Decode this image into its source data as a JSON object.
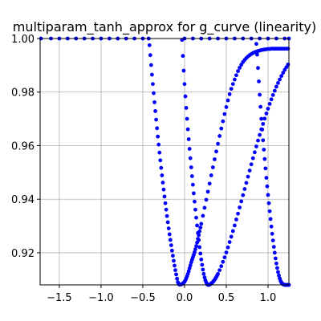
{
  "chart_data": {
    "type": "scatter",
    "title": "multiparam_tanh_approx for g_curve (linearity)",
    "xlabel": "",
    "ylabel": "",
    "xlim": [
      -1.73,
      1.25
    ],
    "ylim": [
      0.908,
      1.0
    ],
    "x_ticks": [
      -1.5,
      -1.0,
      -0.5,
      0.0,
      0.5,
      1.0
    ],
    "x_tick_labels": [
      "−1.5",
      "−1.0",
      "−0.5",
      "0.0",
      "0.5",
      "1.0"
    ],
    "y_ticks": [
      0.92,
      0.94,
      0.96,
      0.98,
      1.0
    ],
    "y_tick_labels": [
      "0.92",
      "0.94",
      "0.96",
      "0.98",
      "1.00"
    ],
    "grid": true,
    "legend": "none",
    "marker_color": "#0000ff",
    "series": [
      {
        "x": [
          -1.72,
          -1.6,
          -1.5,
          -1.4,
          -1.3,
          -1.2,
          -1.1,
          -1.0,
          -0.9,
          -0.8,
          -0.7,
          -0.6,
          -0.5,
          -0.43,
          0.0,
          0.1,
          0.2,
          0.3,
          0.4,
          0.5,
          0.6,
          0.7,
          0.8,
          0.9,
          1.0,
          1.1,
          1.2,
          1.25
        ],
        "y": [
          1.0,
          1.0,
          1.0,
          1.0,
          1.0,
          1.0,
          1.0,
          1.0,
          1.0,
          1.0,
          1.0,
          1.0,
          1.0,
          1.0,
          1.0,
          1.0,
          1.0,
          1.0,
          1.0,
          1.0,
          1.0,
          1.0,
          1.0,
          1.0,
          1.0,
          1.0,
          1.0,
          1.0
        ]
      },
      {
        "x": [
          -0.42,
          -0.41,
          -0.4,
          -0.39,
          -0.38,
          -0.37,
          -0.36,
          -0.35,
          -0.34,
          -0.33,
          -0.32,
          -0.31,
          -0.3,
          -0.29,
          -0.28,
          -0.27,
          -0.26,
          -0.25,
          -0.24,
          -0.23,
          -0.22,
          -0.21,
          -0.2,
          -0.19,
          -0.18,
          -0.17,
          -0.16,
          -0.15,
          -0.14,
          -0.13,
          -0.12,
          -0.11,
          -0.1,
          -0.09,
          -0.08,
          -0.07,
          -0.06,
          -0.05,
          -0.04,
          -0.03,
          -0.02,
          -0.01,
          0.0,
          0.01,
          0.02,
          0.03,
          0.04,
          0.05,
          0.06,
          0.07,
          0.08,
          0.09,
          0.1,
          0.11,
          0.12,
          0.13,
          0.14,
          0.15,
          0.16,
          0.17,
          0.18,
          0.19,
          0.2,
          0.22,
          0.24,
          0.26,
          0.28,
          0.3,
          0.32,
          0.34,
          0.36,
          0.38,
          0.4,
          0.42,
          0.44,
          0.46,
          0.48,
          0.5,
          0.52,
          0.54,
          0.56,
          0.58,
          0.6,
          0.62,
          0.64,
          0.66,
          0.68,
          0.7,
          0.72,
          0.74,
          0.76,
          0.78,
          0.8,
          0.82,
          0.84,
          0.86,
          0.88,
          0.9,
          0.92,
          0.94,
          0.96,
          0.98,
          1.0,
          1.02,
          1.04,
          1.06,
          1.08,
          1.1,
          1.12,
          1.14,
          1.16,
          1.18,
          1.2,
          1.22,
          1.24
        ],
        "y": [
          0.9975,
          0.9938,
          0.9901,
          0.9865,
          0.983,
          0.9796,
          0.9762,
          0.9729,
          0.9697,
          0.9665,
          0.9634,
          0.9604,
          0.9574,
          0.9545,
          0.9517,
          0.9489,
          0.9462,
          0.9436,
          0.941,
          0.9385,
          0.9361,
          0.9337,
          0.9314,
          0.9291,
          0.9269,
          0.9248,
          0.9228,
          0.9208,
          0.9189,
          0.917,
          0.9152,
          0.9135,
          0.9119,
          0.9103,
          0.909,
          0.9083,
          0.9081,
          0.9081,
          0.9082,
          0.9083,
          0.9085,
          0.9088,
          0.9092,
          0.9097,
          0.9104,
          0.9112,
          0.9121,
          0.9131,
          0.9142,
          0.9153,
          0.9164,
          0.9174,
          0.9183,
          0.9192,
          0.9202,
          0.9213,
          0.9225,
          0.9238,
          0.9252,
          0.9266,
          0.928,
          0.9294,
          0.9308,
          0.9338,
          0.9368,
          0.9398,
          0.9428,
          0.9458,
          0.9489,
          0.9519,
          0.9549,
          0.9578,
          0.9607,
          0.9636,
          0.9664,
          0.9691,
          0.9718,
          0.9744,
          0.9769,
          0.9792,
          0.9812,
          0.983,
          0.9847,
          0.9863,
          0.9878,
          0.9891,
          0.9902,
          0.9912,
          0.992,
          0.9927,
          0.9933,
          0.9938,
          0.9942,
          0.9946,
          0.9949,
          0.9951,
          0.9953,
          0.9955,
          0.9957,
          0.9958,
          0.9959,
          0.996,
          0.9961,
          0.9961,
          0.9962,
          0.9962,
          0.9962,
          0.9962,
          0.9962,
          0.9962,
          0.9962,
          0.9962,
          0.9962,
          0.9962,
          0.9962
        ]
      },
      {
        "x": [
          -0.03,
          -0.02,
          -0.01,
          0.0,
          0.01,
          0.02,
          0.03,
          0.04,
          0.05,
          0.06,
          0.07,
          0.08,
          0.09,
          0.1,
          0.11,
          0.12,
          0.13,
          0.14,
          0.15,
          0.16,
          0.17,
          0.18,
          0.19,
          0.2,
          0.21,
          0.22,
          0.23,
          0.24,
          0.25,
          0.26,
          0.27,
          0.28,
          0.29,
          0.3,
          0.31,
          0.32,
          0.33,
          0.34,
          0.35,
          0.36,
          0.37,
          0.38,
          0.39,
          0.4,
          0.42,
          0.44,
          0.46,
          0.48,
          0.5,
          0.52,
          0.54,
          0.56,
          0.58,
          0.6,
          0.62,
          0.64,
          0.66,
          0.68,
          0.7,
          0.72,
          0.74,
          0.76,
          0.78,
          0.8,
          0.82,
          0.84,
          0.86,
          0.88,
          0.9,
          0.92,
          0.94,
          0.96,
          0.98,
          1.0,
          1.02,
          1.04,
          1.06,
          1.08,
          1.1,
          1.12,
          1.14,
          1.16,
          1.18,
          1.2,
          1.22,
          1.24
        ],
        "y": [
          0.9995,
          0.9935,
          0.988,
          0.983,
          0.9784,
          0.9741,
          0.97,
          0.9661,
          0.9624,
          0.9588,
          0.9553,
          0.9519,
          0.9486,
          0.9454,
          0.9422,
          0.9391,
          0.9361,
          0.9331,
          0.9302,
          0.9274,
          0.9247,
          0.9221,
          0.9197,
          0.9175,
          0.9155,
          0.9137,
          0.9121,
          0.9108,
          0.9097,
          0.9089,
          0.9083,
          0.908,
          0.908,
          0.9081,
          0.9083,
          0.9085,
          0.9088,
          0.9091,
          0.9095,
          0.9099,
          0.9104,
          0.9109,
          0.9115,
          0.9121,
          0.9135,
          0.915,
          0.9166,
          0.9183,
          0.9201,
          0.922,
          0.924,
          0.926,
          0.9281,
          0.9302,
          0.9324,
          0.9346,
          0.9369,
          0.9392,
          0.9415,
          0.9438,
          0.9461,
          0.9484,
          0.9507,
          0.953,
          0.9553,
          0.9575,
          0.9597,
          0.9619,
          0.964,
          0.9661,
          0.9681,
          0.9701,
          0.972,
          0.9738,
          0.9756,
          0.9773,
          0.9789,
          0.9805,
          0.982,
          0.9834,
          0.9847,
          0.986,
          0.9872,
          0.9883,
          0.9893,
          0.9903
        ]
      },
      {
        "x": [
          0.86,
          0.87,
          0.88,
          0.89,
          0.9,
          0.91,
          0.92,
          0.93,
          0.94,
          0.95,
          0.96,
          0.97,
          0.98,
          0.99,
          1.0,
          1.01,
          1.02,
          1.03,
          1.04,
          1.05,
          1.06,
          1.07,
          1.08,
          1.09,
          1.1,
          1.11,
          1.12,
          1.13,
          1.14,
          1.15,
          1.16,
          1.17,
          1.18,
          1.19,
          1.2,
          1.21,
          1.22,
          1.23,
          1.24,
          1.25
        ],
        "y": [
          0.998,
          0.994,
          0.989,
          0.984,
          0.979,
          0.9745,
          0.97,
          0.966,
          0.962,
          0.9585,
          0.955,
          0.9515,
          0.948,
          0.9448,
          0.9416,
          0.9385,
          0.9355,
          0.9326,
          0.9298,
          0.9271,
          0.9246,
          0.9222,
          0.92,
          0.9179,
          0.916,
          0.9143,
          0.9128,
          0.9115,
          0.9104,
          0.9095,
          0.9089,
          0.9085,
          0.9082,
          0.9081,
          0.908,
          0.908,
          0.908,
          0.908,
          0.908,
          0.908
        ]
      }
    ]
  }
}
